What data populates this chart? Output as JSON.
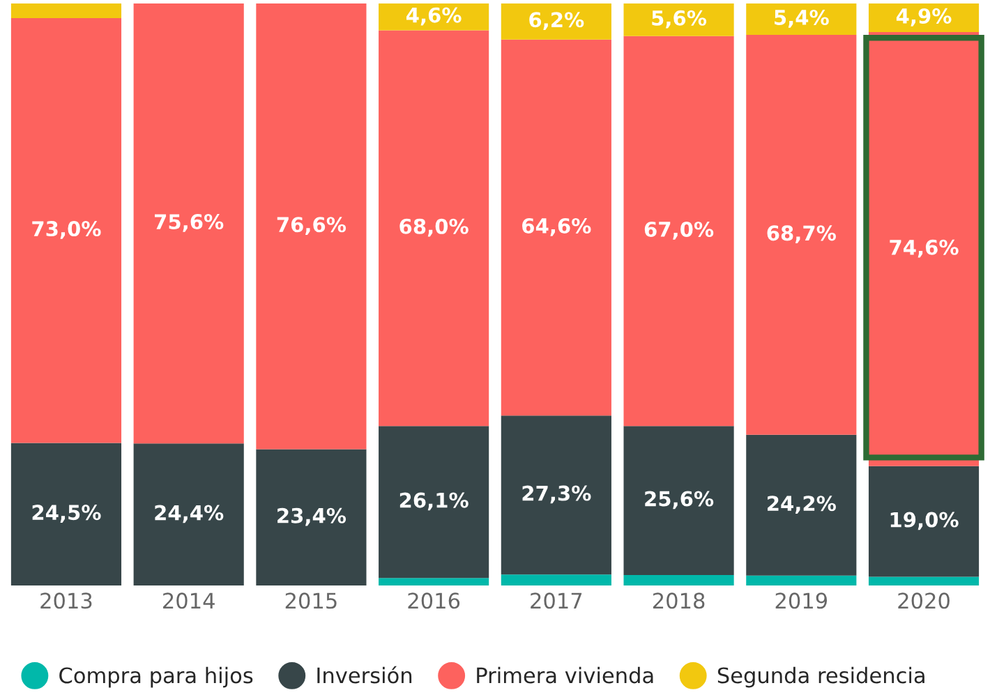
{
  "chart_data": {
    "type": "bar",
    "stacked": true,
    "categories": [
      "2013",
      "2014",
      "2015",
      "2016",
      "2017",
      "2018",
      "2019",
      "2020"
    ],
    "series": [
      {
        "name": "Compra para hijos",
        "color": "#01b8aa",
        "values": [
          null,
          null,
          null,
          1.3,
          1.9,
          1.8,
          1.7,
          1.5
        ],
        "value_labels": [
          null,
          null,
          null,
          null,
          null,
          null,
          null,
          null
        ]
      },
      {
        "name": "Inversión",
        "color": "#374649",
        "values": [
          24.5,
          24.4,
          23.4,
          26.1,
          27.3,
          25.6,
          24.2,
          19.0
        ],
        "value_labels": [
          "24,5%",
          "24,4%",
          "23,4%",
          "26,1%",
          "27,3%",
          "25,6%",
          "24,2%",
          "19,0%"
        ]
      },
      {
        "name": "Primera vivienda",
        "color": "#fd625e",
        "values": [
          73.0,
          75.6,
          76.6,
          68.0,
          64.6,
          67.0,
          68.7,
          74.6
        ],
        "value_labels": [
          "73,0%",
          "75,6%",
          "76,6%",
          "68,0%",
          "64,6%",
          "67,0%",
          "68,7%",
          "74,6%"
        ]
      },
      {
        "name": "Segunda residencia",
        "color": "#f2c80f",
        "values": [
          2.5,
          null,
          null,
          4.6,
          6.2,
          5.6,
          5.4,
          4.9
        ],
        "value_labels": [
          null,
          null,
          null,
          "4,6%",
          "6,2%",
          "5,6%",
          "5,4%",
          "4,9%"
        ]
      }
    ],
    "ylim": [
      0,
      100
    ],
    "tick_labels": "x",
    "grid": false,
    "legend": "bottom",
    "marker": "circle"
  }
}
